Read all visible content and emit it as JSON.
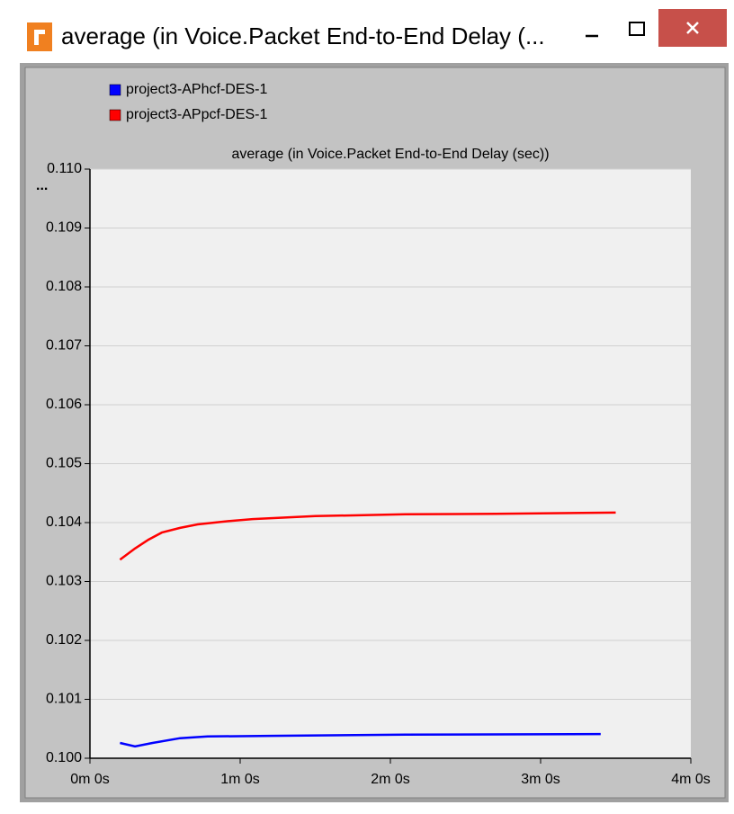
{
  "window": {
    "title": "average (in Voice.Packet End-to-End Delay (..."
  },
  "chart_data": {
    "type": "line",
    "title": "average (in Voice.Packet End-to-End Delay (sec))",
    "y_marker": "...",
    "xlim": [
      0,
      240
    ],
    "xticks": [
      {
        "value": 0,
        "label": "0m 0s"
      },
      {
        "value": 60,
        "label": "1m 0s"
      },
      {
        "value": 120,
        "label": "2m 0s"
      },
      {
        "value": 180,
        "label": "3m 0s"
      },
      {
        "value": 240,
        "label": "4m 0s"
      }
    ],
    "ylim": [
      0.1,
      0.11
    ],
    "yticks": [
      {
        "value": 0.1,
        "label": "0.100"
      },
      0.101,
      0.102,
      0.103,
      0.104,
      0.105,
      0.106,
      0.107,
      0.108,
      0.109,
      {
        "value": 0.11,
        "label": "0.110"
      }
    ],
    "grid": true,
    "legend": "top-left",
    "series": [
      {
        "name": "project3-APhcf-DES-1",
        "color": "#0000ff",
        "x": [
          12,
          18,
          25,
          36,
          47,
          72,
          126,
          204
        ],
        "values": [
          0.10026,
          0.1002,
          0.10026,
          0.10034,
          0.10037,
          0.10038,
          0.1004,
          0.10041
        ]
      },
      {
        "name": "project3-APpcf-DES-1",
        "color": "#ff0000",
        "x": [
          12,
          18,
          23.4,
          28.7,
          36,
          43,
          54,
          65,
          90,
          126,
          162,
          210
        ],
        "values": [
          0.10337,
          0.10356,
          0.10371,
          0.10383,
          0.10391,
          0.10397,
          0.10402,
          0.10406,
          0.10411,
          0.10414,
          0.10415,
          0.10417
        ]
      }
    ]
  }
}
